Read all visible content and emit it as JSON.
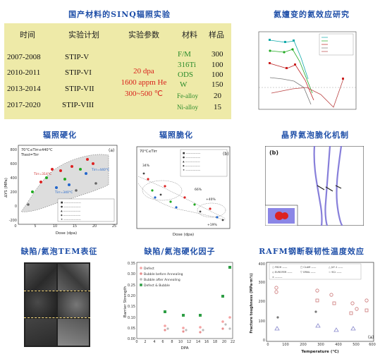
{
  "top_title": "国产材料的SINQ辐照实验",
  "table": {
    "headers": [
      "时间",
      "实验计划",
      "实验参数",
      "材料",
      "样品"
    ],
    "years": [
      "2007-2008",
      "2010-2011",
      "2013-2014",
      "2017-2020"
    ],
    "plans": [
      "STIP-V",
      "STIP-VI",
      "STIP-VII",
      "STIP-VIII"
    ],
    "params": [
      "20 dpa",
      "1600 appm He",
      "300~500 ℃"
    ],
    "materials": [
      "F/M",
      "316Ti",
      "ODS",
      "W",
      "Fe-alloy",
      "Ni-alloy"
    ],
    "samples": [
      "300",
      "100",
      "100",
      "150",
      "20",
      "15"
    ]
  },
  "panels": {
    "helium_effect": "氦嬗变的氦效应研究",
    "hardening": "辐照硬化",
    "embrittlement": "辐照脆化",
    "grain_boundary": "晶界氦泡脆化机制",
    "tem": "缺陷/氦泡TEM表征",
    "barrier": "缺陷/氦泡硬化因子",
    "toughness": "RAFM钢断裂韧性温度效应"
  },
  "hardening_chart": {
    "label_a": "(a)",
    "cond": "70°C≤Tirr≤440°C",
    "cond2": "Ttest=Tirr",
    "t1": "Tirr=314°C",
    "t2": "Tirr=340°C",
    "t3": "Tirr=440°C",
    "xlabel": "Dose (dpa)",
    "ylabel": "ΔYS (MPa)",
    "xticks": [
      "0",
      "5",
      "10",
      "15",
      "20",
      "25"
    ],
    "yticks": [
      "-200",
      "0",
      "200",
      "400",
      "600",
      "800"
    ]
  },
  "embrittle_chart": {
    "label_b": "(b)",
    "cond": "70°C≤Tirr",
    "xlabel": "Dose (dpa)",
    "ann": [
      "34%",
      "66%",
      "+40%",
      "+19%"
    ]
  },
  "gb_chart": {
    "label": "(b)"
  },
  "barrier_chart": {
    "ylabel": "Barrier Strength",
    "xlabel": "DPA",
    "legend": [
      "Defect",
      "Bubble before Annealing",
      "Bubble after Annealing",
      "Defect & Bubble"
    ],
    "colors": [
      "#f4a3a3",
      "#e88d8d",
      "#bbbbbb",
      "#2e9e45"
    ],
    "yticks": [
      "0.00",
      "0.05",
      "0.10",
      "0.15",
      "0.20",
      "0.25",
      "0.30",
      "0.35"
    ],
    "xticks": [
      "0",
      "2",
      "4",
      "6",
      "8",
      "10",
      "12",
      "14",
      "16",
      "18",
      "20",
      "22"
    ]
  },
  "toughness_chart": {
    "ylabel": "Fracture toughness (MPa·m½)",
    "xlabel": "Temperature (°C)",
    "label": "(a)",
    "xticks": [
      "0",
      "100",
      "200",
      "300",
      "400",
      "500",
      "600"
    ],
    "yticks": [
      "0",
      "100",
      "200",
      "300",
      "400"
    ]
  }
}
